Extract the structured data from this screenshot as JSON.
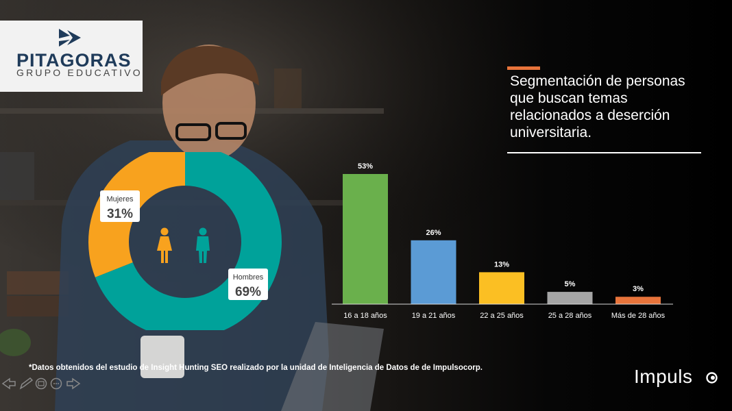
{
  "logo": {
    "name": "PITAGORAS",
    "subtitle": "GRUPO EDUCATIVO",
    "icon": "double-chevron-logo-icon"
  },
  "title": "Segmentación de personas que buscan temas relacionados a deserción universitaria.",
  "colors": {
    "accent": "#e8743b",
    "teal": "#00a29a",
    "orange": "#f8a21e"
  },
  "chart_data": [
    {
      "type": "pie",
      "variant": "donut",
      "slices": [
        {
          "label": "Mujeres",
          "value": 31,
          "display": "31%",
          "color": "#f8a21e"
        },
        {
          "label": "Hombres",
          "value": 69,
          "display": "69%",
          "color": "#00a29a"
        }
      ],
      "center_icons": [
        "female-icon",
        "male-icon"
      ]
    },
    {
      "type": "bar",
      "categories": [
        "16 a 18 años",
        "19 a 21 años",
        "22 a 25 años",
        "25 a 28 años",
        "Más de 28 años"
      ],
      "values": [
        53,
        26,
        13,
        5,
        3
      ],
      "value_labels": [
        "53%",
        "26%",
        "13%",
        "5%",
        "3%"
      ],
      "colors": [
        "#6ab04c",
        "#5b9bd5",
        "#fbbf23",
        "#a5a5a5",
        "#e8743b"
      ],
      "unit": "%",
      "ylim": [
        0,
        53
      ]
    }
  ],
  "footnote": "*Datos obtenidos del estudio de Insight Hunting SEO realizado por la unidad de Inteligencia de Datos de de Impulsocorp.",
  "brand": {
    "name": "Impuls",
    "icon": "impulso-o-icon"
  },
  "nav": [
    "back-arrow-icon",
    "pen-icon",
    "slides-icon",
    "menu-icon",
    "forward-arrow-icon"
  ]
}
